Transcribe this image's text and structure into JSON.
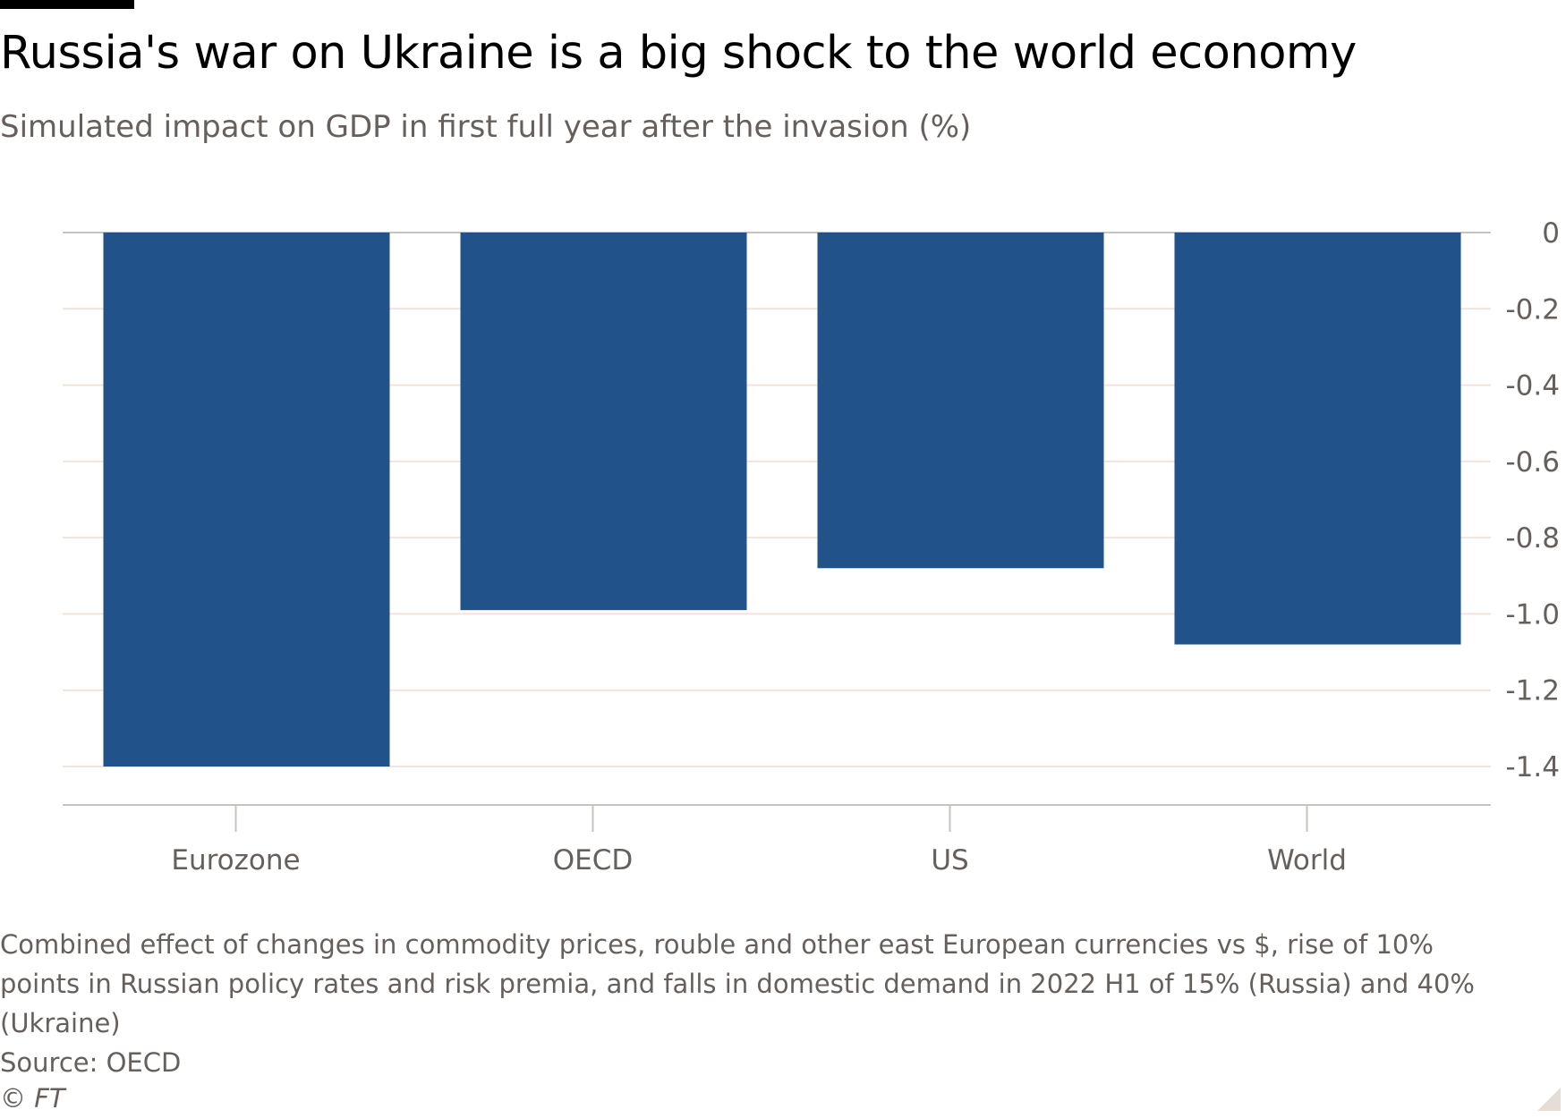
{
  "header": {
    "title": "Russia's war on Ukraine is a big shock to the world economy",
    "subtitle": "Simulated impact on GDP in first full year after the invasion (%)"
  },
  "footer": {
    "note": "Combined effect of changes in commodity prices, rouble and other east European currencies vs $, rise of 10% points in Russian policy rates and risk premia, and falls in domestic demand in 2022 H1 of 15% (Russia) and 40% (Ukraine)",
    "source": "Source: OECD",
    "copyright": "© FT"
  },
  "colors": {
    "bar": "#21538a",
    "grid": "#f0e4dc",
    "axis": "#c9c3bf",
    "tick_text": "#66605c"
  },
  "chart_data": {
    "type": "bar",
    "categories": [
      "Eurozone",
      "OECD",
      "US",
      "World"
    ],
    "values": [
      -1.4,
      -0.99,
      -0.88,
      -1.08
    ],
    "ylim": [
      -1.4,
      0
    ],
    "y_ticks": [
      {
        "value": 0,
        "label": "0"
      },
      {
        "value": -0.2,
        "label": "-0.2"
      },
      {
        "value": -0.4,
        "label": "-0.4"
      },
      {
        "value": -0.6,
        "label": "-0.6"
      },
      {
        "value": -0.8,
        "label": "-0.8"
      },
      {
        "value": -1.0,
        "label": "-1.0"
      },
      {
        "value": -1.2,
        "label": "-1.2"
      },
      {
        "value": -1.4,
        "label": "-1.4"
      }
    ],
    "y_axis_position": "right",
    "grid": true,
    "legend": "none"
  }
}
